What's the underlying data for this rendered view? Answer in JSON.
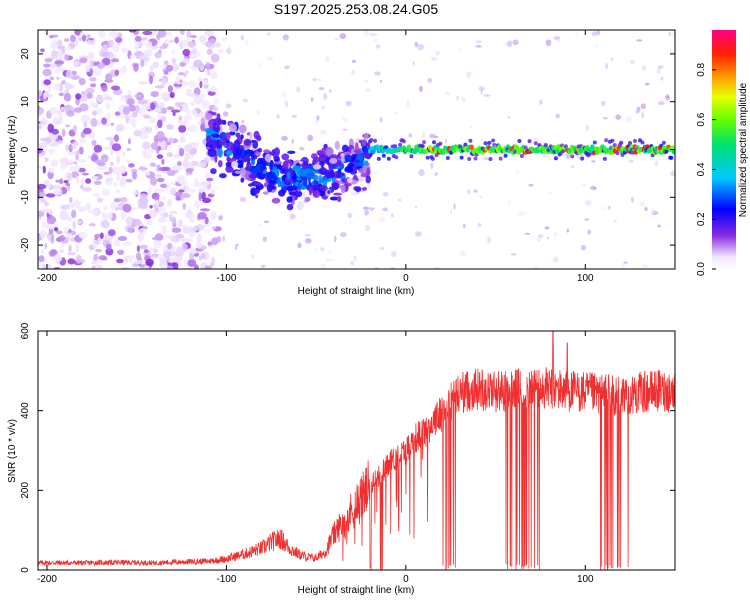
{
  "title": "S197.2025.253.08.24.G05",
  "chart_data": [
    {
      "type": "heatmap",
      "name": "spectrogram",
      "xlabel": "Height of straight line (km)",
      "ylabel": "Frequency (Hz)",
      "xlim": [
        -205,
        150
      ],
      "ylim": [
        -25,
        25
      ],
      "xticks": [
        -200,
        -100,
        0,
        100
      ],
      "yticks": [
        -20,
        -10,
        0,
        10,
        20
      ],
      "grid": false,
      "colorbar": {
        "label": "Normalized spectral amplitude",
        "range": [
          0,
          0.96
        ],
        "ticks": [
          0.0,
          0.2,
          0.4,
          0.6,
          0.8
        ],
        "colormap": "rainbow (white-violet-blue-cyan-green-yellow-red-magenta)"
      },
      "features": [
        {
          "height_range": [
            -205,
            -110
          ],
          "description": "broadband noise",
          "amplitude_range": [
            0.0,
            0.12
          ],
          "freq_range": [
            -25,
            25
          ]
        },
        {
          "height_range": [
            -110,
            -20
          ],
          "description": "dispersing signal",
          "amplitude_range": [
            0.05,
            0.25
          ],
          "center_freq_start": 3,
          "center_freq_end": -6
        },
        {
          "height_range": [
            -20,
            150
          ],
          "description": "coherent line near 0 Hz",
          "amplitude_range": [
            0.3,
            0.92
          ],
          "center_freq": 0
        }
      ]
    },
    {
      "type": "line",
      "name": "snr",
      "xlabel": "Height of straight line (km)",
      "ylabel": "SNR (10 * v/v)",
      "xlim": [
        -205,
        150
      ],
      "ylim": [
        0,
        600
      ],
      "xticks": [
        -200,
        -100,
        0,
        100
      ],
      "yticks": [
        0,
        200,
        400,
        600
      ],
      "grid": false,
      "series": [
        {
          "name": "SNR",
          "color": "#f03030"
        }
      ],
      "x": [
        -205,
        -180,
        -160,
        -140,
        -120,
        -110,
        -100,
        -90,
        -80,
        -75,
        -70,
        -65,
        -60,
        -55,
        -50,
        -45,
        -40,
        -35,
        -30,
        -25,
        -20,
        -15,
        -10,
        -5,
        0,
        5,
        10,
        15,
        20,
        25,
        30,
        40,
        50,
        60,
        70,
        80,
        90,
        100,
        110,
        120,
        130,
        140,
        150
      ],
      "values": [
        18,
        18,
        19,
        18,
        21,
        22,
        28,
        40,
        55,
        70,
        80,
        55,
        40,
        32,
        30,
        45,
        90,
        120,
        150,
        180,
        210,
        235,
        265,
        285,
        300,
        330,
        345,
        370,
        395,
        420,
        445,
        455,
        450,
        450,
        455,
        455,
        450,
        445,
        440,
        440,
        445,
        450,
        448
      ],
      "dropouts": [
        [
          -20,
          -10
        ],
        [
          20,
          28
        ],
        [
          55,
          75
        ],
        [
          108,
          125
        ]
      ],
      "peak_annotations": [
        {
          "x": 82,
          "y": 600
        },
        {
          "x": 90,
          "y": 570
        }
      ]
    }
  ],
  "colors": {
    "line": "#f03030",
    "axes": "#000000",
    "background": "#ffffff"
  }
}
